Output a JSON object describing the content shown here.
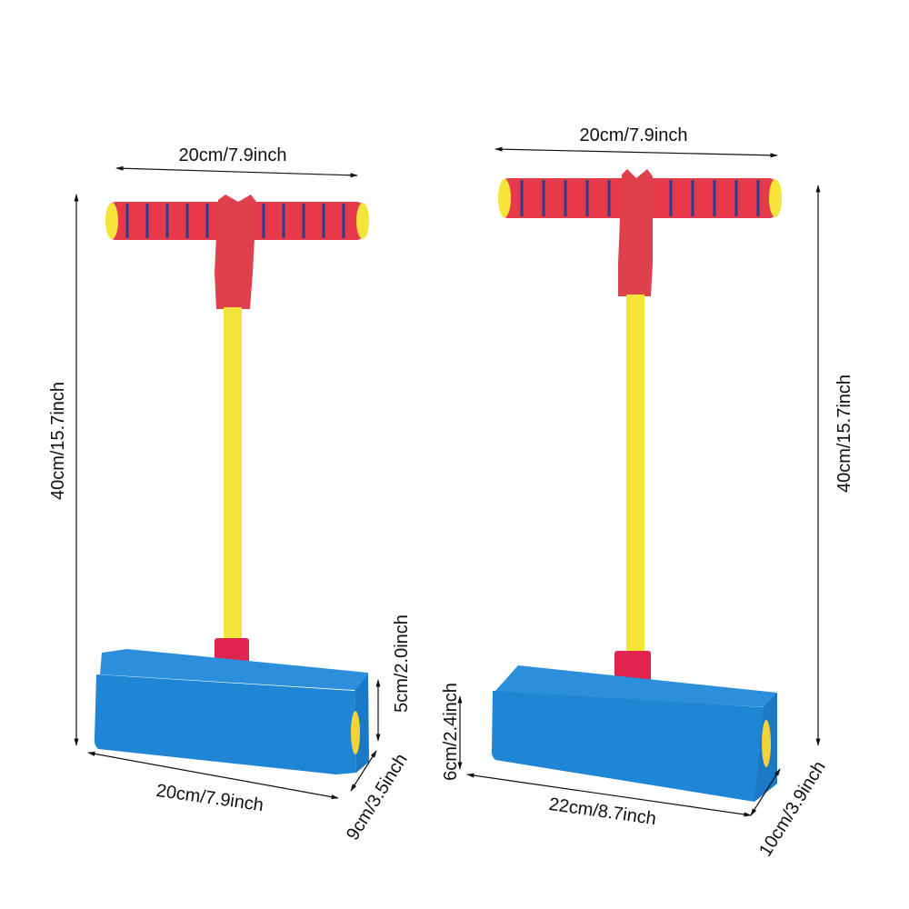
{
  "colors": {
    "handle": "#e63a4a",
    "stripe": "#2a3d8f",
    "pole": "#f5e43a",
    "base": "#1f86d6",
    "collar": "#e0244e"
  },
  "left_product": {
    "handle_width": "20cm/7.9inch",
    "total_height": "40cm/15.7inch",
    "base_height": "5cm/2.0inch",
    "base_depth": "9cm/3.5inch",
    "base_length": "20cm/7.9inch"
  },
  "right_product": {
    "handle_width": "20cm/7.9inch",
    "total_height": "40cm/15.7inch",
    "base_height": "6cm/2.4inch",
    "base_depth": "10cm/3.9inch",
    "base_length": "22cm/8.7inch"
  }
}
